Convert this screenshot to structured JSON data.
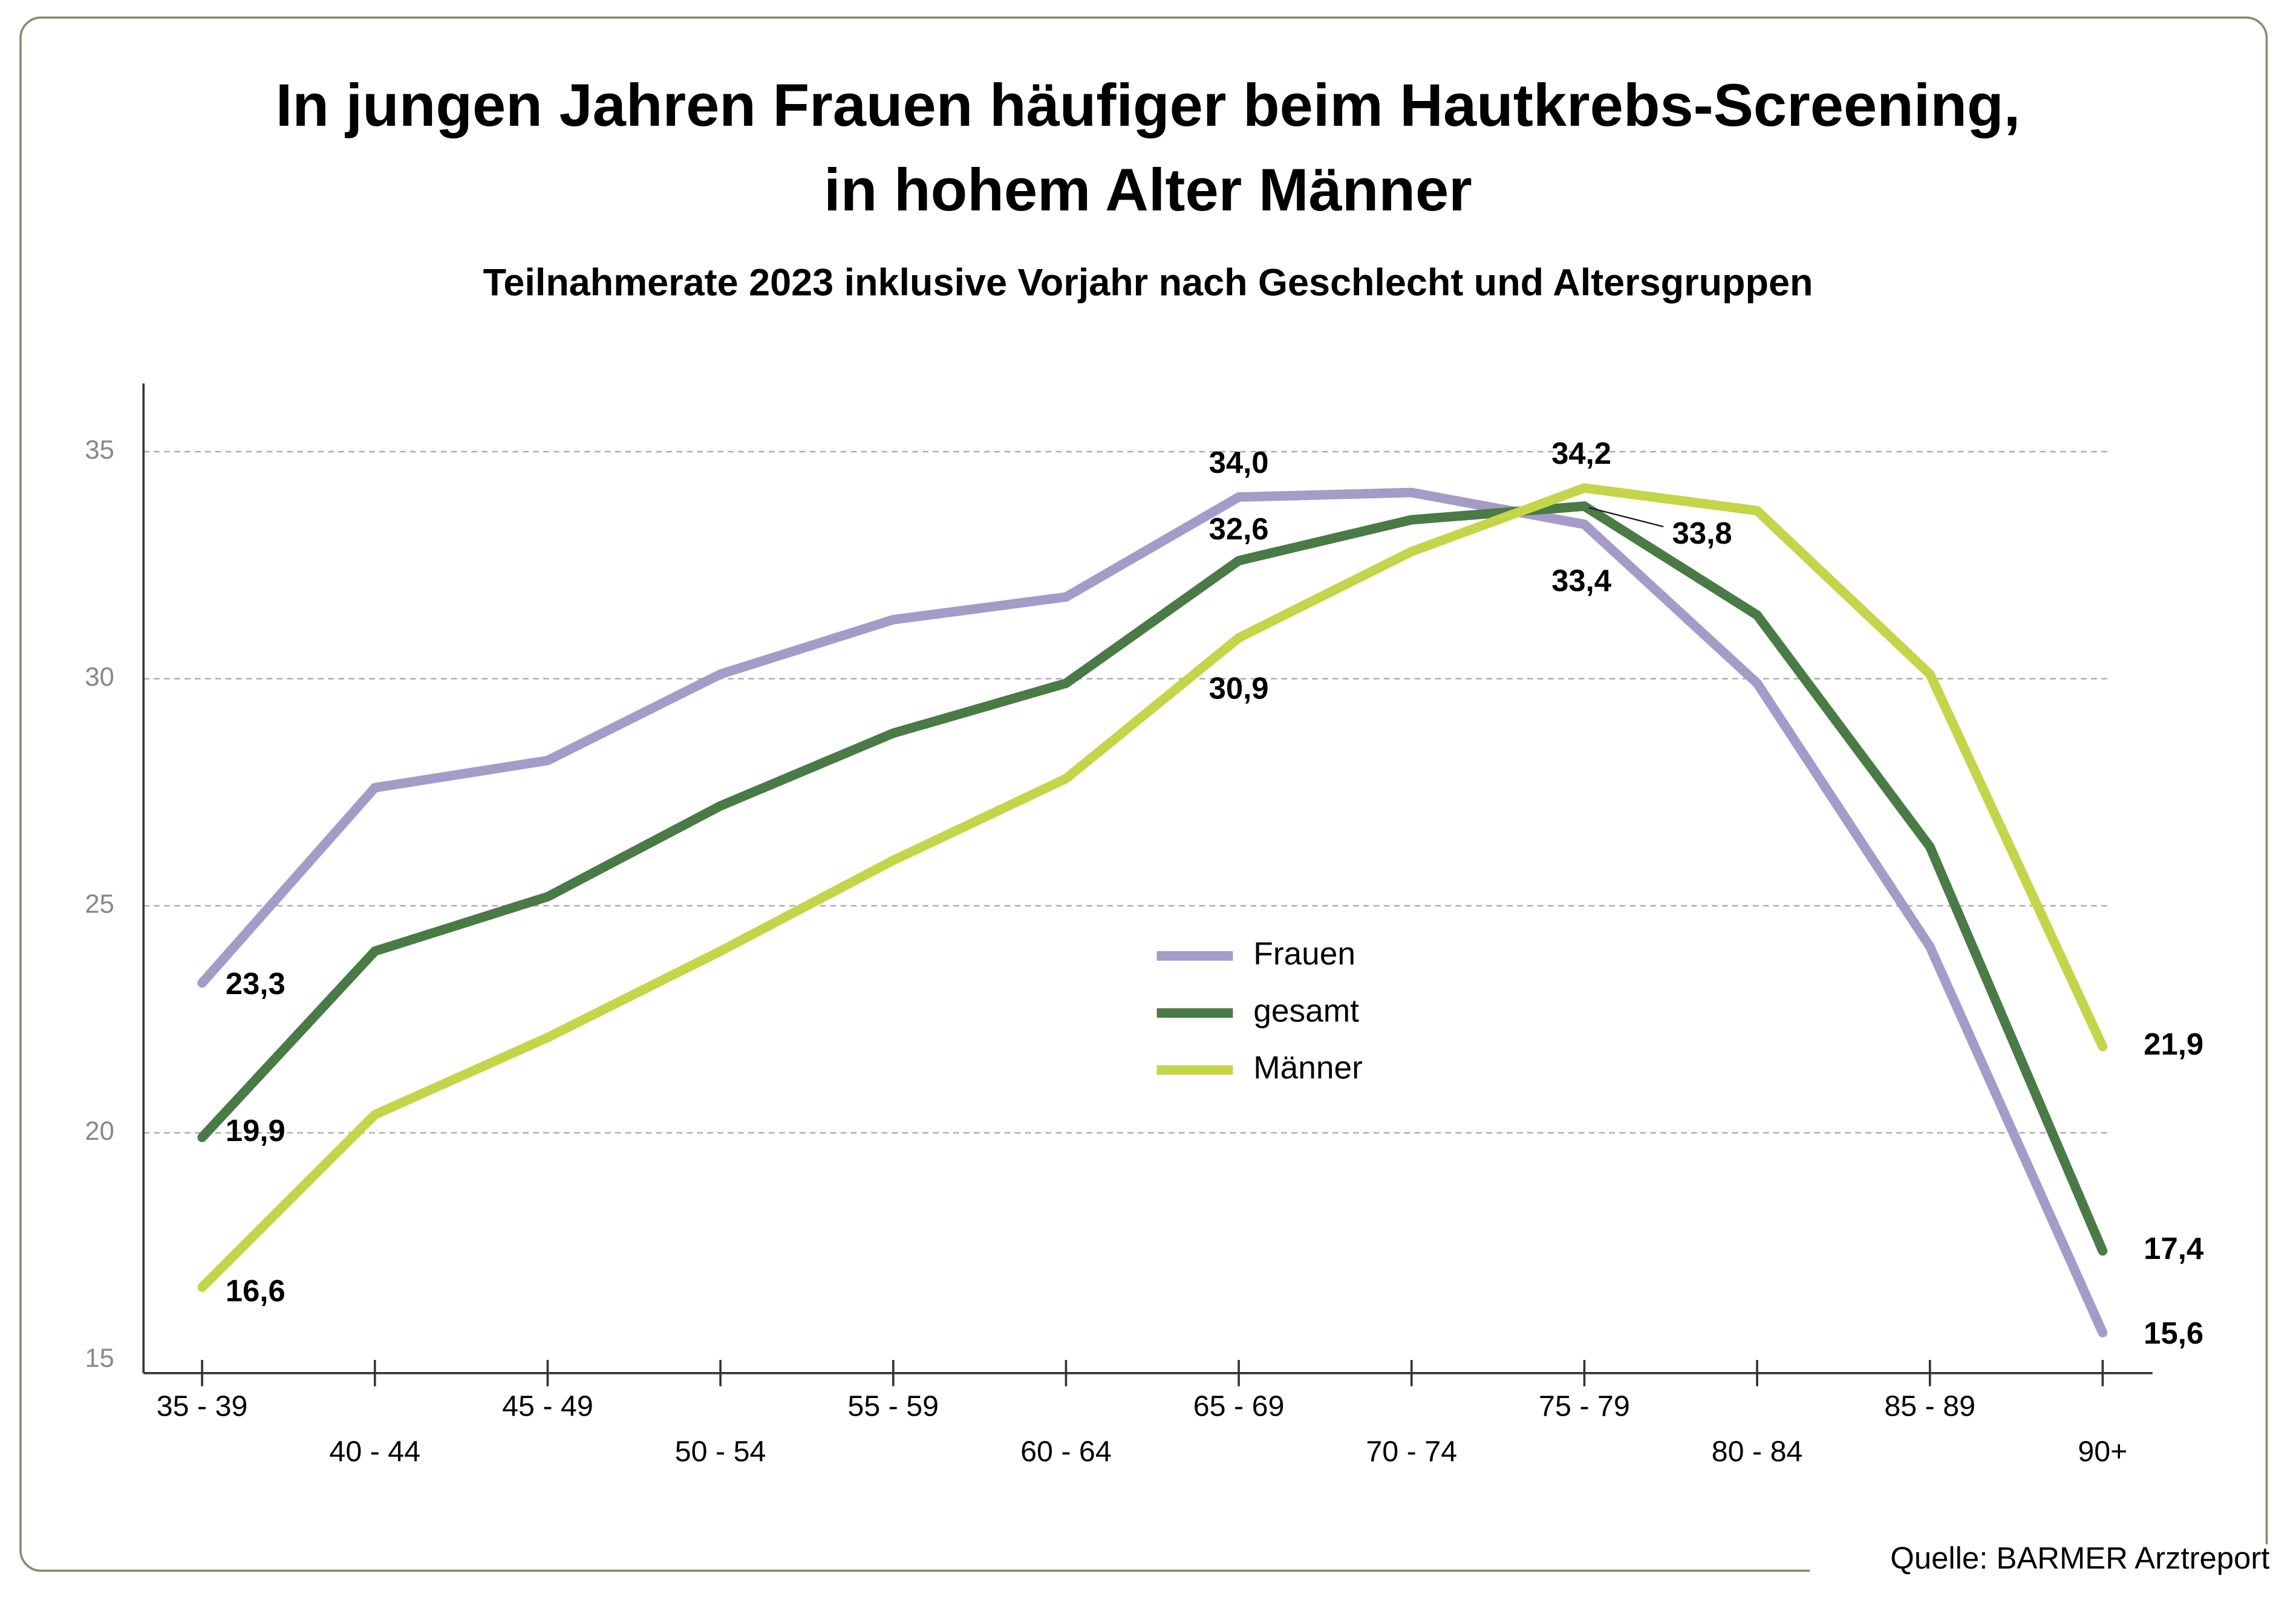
{
  "chart_data": {
    "type": "line",
    "title": [
      "In jungen Jahren Frauen häufiger beim Hautkrebs-Screening,",
      "in hohem Alter Männer"
    ],
    "subtitle": "Teilnahmerate 2023 inklusive Vorjahr nach Geschlecht und Altersgruppen",
    "source": "Quelle: BARMER Arztreport",
    "categories": [
      "35 - 39",
      "40 - 44",
      "45 - 49",
      "50 - 54",
      "55 - 59",
      "60 - 64",
      "65 - 69",
      "70 - 74",
      "75 - 79",
      "80 - 84",
      "85 - 89",
      "90+"
    ],
    "series": [
      {
        "name": "Frauen",
        "color": "#a59bc8",
        "values": [
          23.3,
          27.6,
          28.2,
          30.1,
          31.3,
          31.8,
          34.0,
          34.1,
          33.4,
          29.9,
          24.1,
          15.6
        ],
        "value_labels": [
          "23,3",
          null,
          null,
          null,
          null,
          null,
          "34,0",
          null,
          "33,4",
          null,
          null,
          "15,6"
        ]
      },
      {
        "name": "gesamt",
        "color": "#4a7a45",
        "values": [
          19.9,
          24.0,
          25.2,
          27.2,
          28.8,
          29.9,
          32.6,
          33.5,
          33.8,
          31.4,
          26.3,
          17.4
        ],
        "value_labels": [
          "19,9",
          null,
          null,
          null,
          null,
          null,
          "32,6",
          null,
          "33,8",
          null,
          null,
          "17,4"
        ]
      },
      {
        "name": "Männer",
        "color": "#c5d54a",
        "values": [
          16.6,
          20.4,
          22.1,
          24.0,
          26.0,
          27.8,
          30.9,
          32.8,
          34.2,
          33.7,
          30.1,
          21.9
        ],
        "value_labels": [
          "16,6",
          null,
          null,
          null,
          null,
          null,
          "30,9",
          null,
          "34,2",
          null,
          null,
          "21,9"
        ]
      }
    ],
    "ylim": [
      15,
      36.5
    ],
    "yticks": [
      15,
      20,
      25,
      30,
      35
    ],
    "grid": true
  }
}
